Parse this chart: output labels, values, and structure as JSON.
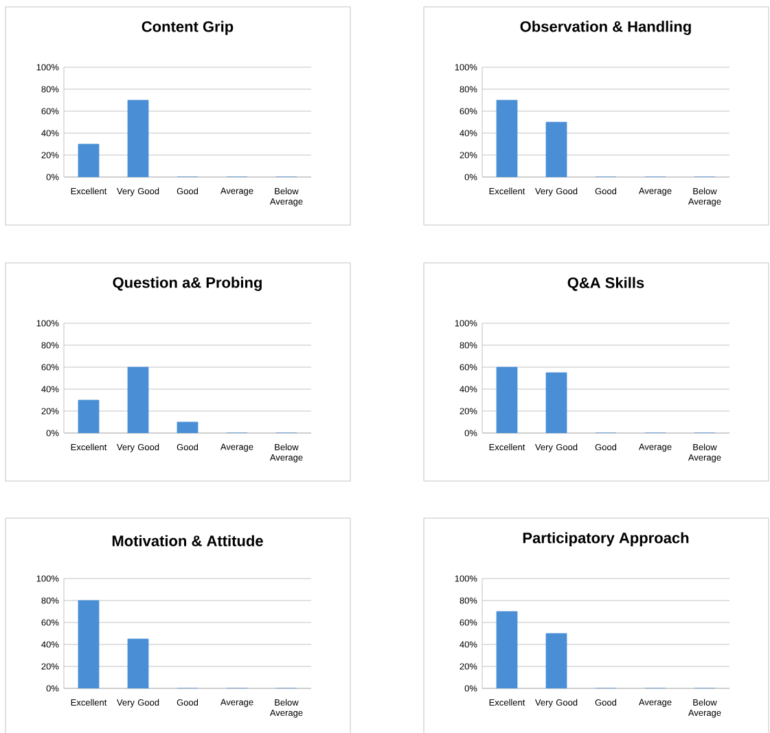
{
  "chart_data": [
    {
      "type": "bar",
      "title": "Content Grip",
      "categories": [
        "Excellent",
        "Very Good",
        "Good",
        "Average",
        "Below Average"
      ],
      "values": [
        30,
        70,
        0,
        0,
        0
      ],
      "color": "#4a8fd6",
      "ylim": [
        0,
        100
      ],
      "yticks": [
        {
          "value": 0,
          "label": "0%"
        },
        {
          "value": 20,
          "label": "20%"
        },
        {
          "value": 40,
          "label": "40%"
        },
        {
          "value": 60,
          "label": "60%"
        },
        {
          "value": 80,
          "label": "80%"
        },
        {
          "value": 100,
          "label": "100%"
        }
      ],
      "grid": "y"
    },
    {
      "type": "bar",
      "title": "Observation & Handling",
      "categories": [
        "Excellent",
        "Very Good",
        "Good",
        "Average",
        "Below Average"
      ],
      "values": [
        70,
        50,
        0,
        0,
        0
      ],
      "color": "#4a8fd6",
      "ylim": [
        0,
        100
      ],
      "yticks": [
        {
          "value": 0,
          "label": "0%"
        },
        {
          "value": 20,
          "label": "20%"
        },
        {
          "value": 40,
          "label": "40%"
        },
        {
          "value": 60,
          "label": "60%"
        },
        {
          "value": 80,
          "label": "80%"
        },
        {
          "value": 100,
          "label": "100%"
        }
      ],
      "grid": "y"
    },
    {
      "type": "bar",
      "title": "Question a& Probing",
      "categories": [
        "Excellent",
        "Very Good",
        "Good",
        "Average",
        "Below Average"
      ],
      "values": [
        30,
        60,
        10,
        0,
        0
      ],
      "color": "#4a8fd6",
      "ylim": [
        0,
        100
      ],
      "yticks": [
        {
          "value": 0,
          "label": "0%"
        },
        {
          "value": 20,
          "label": "20%"
        },
        {
          "value": 40,
          "label": "40%"
        },
        {
          "value": 60,
          "label": "60%"
        },
        {
          "value": 80,
          "label": "80%"
        },
        {
          "value": 100,
          "label": "100%"
        }
      ],
      "grid": "y"
    },
    {
      "type": "bar",
      "title": "Q&A Skills",
      "categories": [
        "Excellent",
        "Very Good",
        "Good",
        "Average",
        "Below Average"
      ],
      "values": [
        60,
        55,
        0,
        0,
        0
      ],
      "color": "#4a8fd6",
      "ylim": [
        0,
        100
      ],
      "yticks": [
        {
          "value": 0,
          "label": "0%"
        },
        {
          "value": 20,
          "label": "20%"
        },
        {
          "value": 40,
          "label": "40%"
        },
        {
          "value": 60,
          "label": "60%"
        },
        {
          "value": 80,
          "label": "80%"
        },
        {
          "value": 100,
          "label": "100%"
        }
      ],
      "grid": "y"
    },
    {
      "type": "bar",
      "title": "Motivation & Attitude",
      "categories": [
        "Excellent",
        "Very Good",
        "Good",
        "Average",
        "Below Average"
      ],
      "values": [
        80,
        45,
        0,
        0,
        0
      ],
      "color": "#4a8fd6",
      "ylim": [
        0,
        100
      ],
      "yticks": [
        {
          "value": 0,
          "label": "0%"
        },
        {
          "value": 20,
          "label": "20%"
        },
        {
          "value": 40,
          "label": "40%"
        },
        {
          "value": 60,
          "label": "60%"
        },
        {
          "value": 80,
          "label": "80%"
        },
        {
          "value": 100,
          "label": "100%"
        }
      ],
      "grid": "y"
    },
    {
      "type": "bar",
      "title": "Participatory Approach",
      "categories": [
        "Excellent",
        "Very Good",
        "Good",
        "Average",
        "Below Average"
      ],
      "values": [
        70,
        50,
        0,
        0,
        0
      ],
      "color": "#4a8fd6",
      "ylim": [
        0,
        100
      ],
      "yticks": [
        {
          "value": 0,
          "label": "0%"
        },
        {
          "value": 20,
          "label": "20%"
        },
        {
          "value": 40,
          "label": "40%"
        },
        {
          "value": 60,
          "label": "60%"
        },
        {
          "value": 80,
          "label": "80%"
        },
        {
          "value": 100,
          "label": "100%"
        }
      ],
      "grid": "y"
    }
  ]
}
